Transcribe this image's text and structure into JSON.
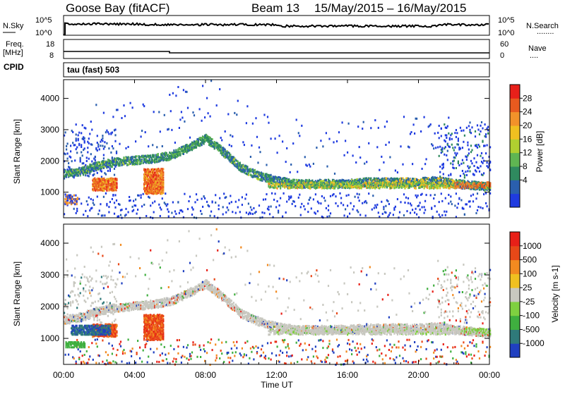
{
  "header": {
    "station": "Goose Bay (fitACF)",
    "beam": "Beam 13",
    "date_range": "15/May/2015 – 16/May/2015"
  },
  "strips": {
    "nsky": {
      "label": "N.Sky",
      "ticks": [
        "10^5",
        "10^0"
      ]
    },
    "nsearch": {
      "label": "N.Search",
      "ticks": [
        "10^5",
        "10^0"
      ],
      "dots": "........"
    },
    "freq": {
      "label_line1": "Freq.",
      "label_line2": "[MHz]",
      "ticks": [
        "18",
        "8"
      ]
    },
    "nave": {
      "label": "Nave",
      "ticks": [
        "60",
        "0"
      ],
      "dots": "...."
    },
    "cpid": {
      "label": "CPID",
      "value": "tau (fast) 503"
    }
  },
  "panels": {
    "power": {
      "ylabel": "Slant Range [km]",
      "yticks": [
        "4000",
        "3000",
        "2000",
        "1000"
      ],
      "colorbar_label": "Power [dB]",
      "colorbar_ticks": [
        "28",
        "24",
        "20",
        "16",
        "12",
        "8",
        "4"
      ],
      "colors": [
        "#1f3be0",
        "#2a5fae",
        "#2f8a5f",
        "#5fb552",
        "#b0cf30",
        "#f0c020",
        "#f2922a",
        "#e85a1f",
        "#e8201a"
      ]
    },
    "velocity": {
      "ylabel": "Slant Range [km]",
      "yticks": [
        "4000",
        "3000",
        "2000",
        "1000"
      ],
      "colorbar_label": "Velocity [m s-1]",
      "colorbar_ticks": [
        "1000",
        "500",
        "100",
        "25",
        "-25",
        "-100",
        "-500",
        "-1000"
      ],
      "colors": [
        "#2040c0",
        "#2f7a7a",
        "#3faf3f",
        "#7fd040",
        "#c8c8c0",
        "#f0c020",
        "#f28a20",
        "#e84818",
        "#e82018"
      ]
    }
  },
  "xaxis": {
    "label": "Time UT",
    "ticks": [
      "00:00",
      "04:00",
      "08:00",
      "12:00",
      "16:00",
      "20:00",
      "00:00"
    ]
  },
  "chart_data": {
    "type": "heatmap",
    "title": "Goose Bay (fitACF) Beam 13 15/May/2015 – 16/May/2015",
    "xlabel": "Time UT",
    "ylabel": "Slant Range [km]",
    "xlim": [
      "00:00",
      "24:00"
    ],
    "ylim": [
      180,
      4600
    ],
    "echo_band_center_km": {
      "time_h": [
        0,
        1,
        2,
        3,
        4,
        5,
        6,
        7,
        8,
        9,
        10,
        11,
        12,
        13,
        14,
        15,
        16,
        17,
        18,
        19,
        20,
        21,
        22,
        23,
        24
      ],
      "range_km": [
        1600,
        1700,
        1900,
        2000,
        2050,
        2100,
        2200,
        2450,
        2750,
        2300,
        1800,
        1550,
        1400,
        1300,
        1300,
        1300,
        1300,
        1350,
        1350,
        1350,
        1350,
        1400,
        1300,
        1250,
        1200
      ]
    },
    "power_scale_db": [
      4,
      8,
      12,
      16,
      20,
      24,
      28
    ],
    "velocity_scale_ms": [
      -1000,
      -500,
      -100,
      -25,
      25,
      100,
      500,
      1000
    ]
  }
}
